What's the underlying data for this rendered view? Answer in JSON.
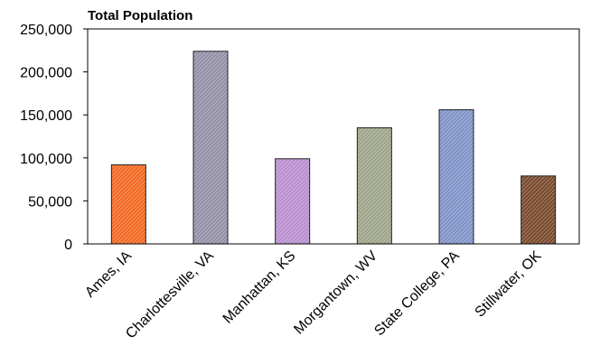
{
  "chart_data": {
    "type": "bar",
    "title": "Total Population",
    "xlabel": "",
    "ylabel": "",
    "categories": [
      "Ames, IA",
      "Charlottesville, VA",
      "Manhattan, KS",
      "Morgantown, WV",
      "State College, PA",
      "Stillwater, OK"
    ],
    "values": [
      92000,
      224000,
      99000,
      135000,
      156000,
      79000
    ],
    "ylim": [
      0,
      250000
    ],
    "yticks": [
      0,
      50000,
      100000,
      150000,
      200000,
      250000
    ],
    "ytick_labels": [
      "0",
      "50,000",
      "100,000",
      "150,000",
      "200,000",
      "250,000"
    ],
    "bar_colors": [
      "#f26a22",
      "#9490a8",
      "#b98fd0",
      "#9ea58a",
      "#7f93c8",
      "#7a4a2e"
    ],
    "grid": false,
    "legend": "none"
  }
}
